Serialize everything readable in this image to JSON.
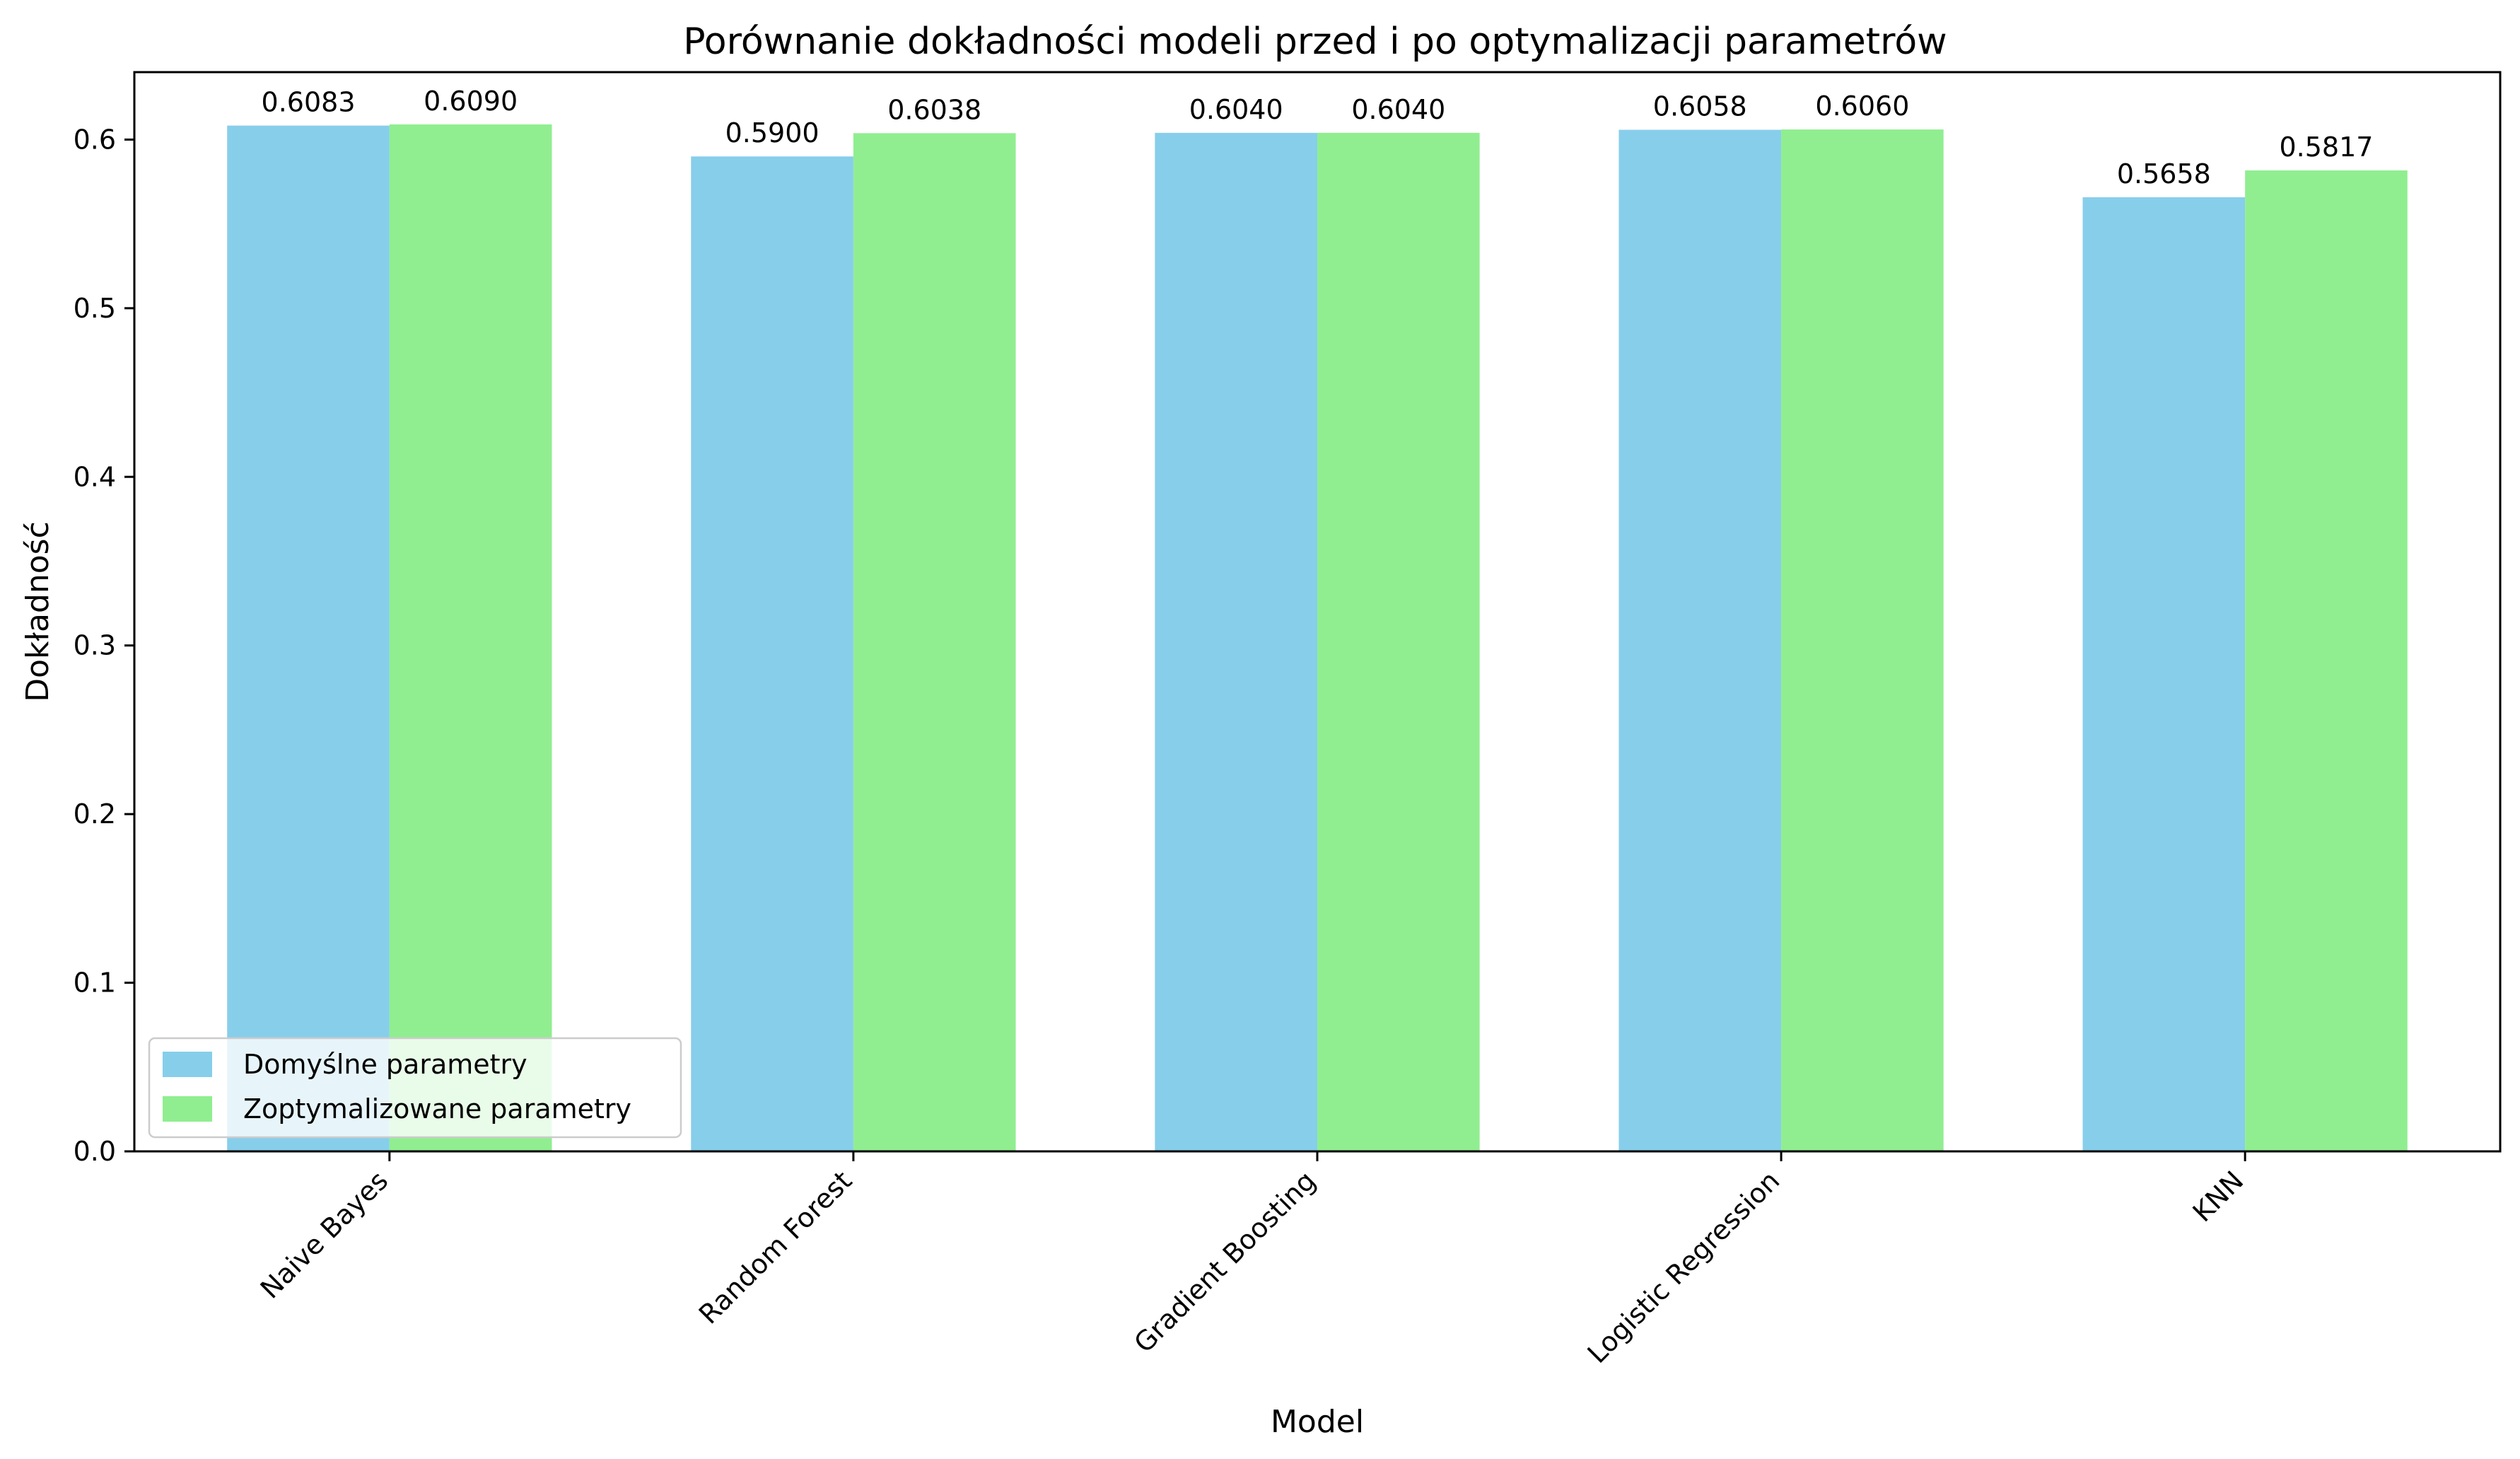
{
  "chart_data": {
    "type": "bar",
    "title": "Porównanie dokładności modeli przed i po optymalizacji parametrów",
    "xlabel": "Model",
    "ylabel": "Dokładność",
    "categories": [
      "Naive Bayes",
      "Random Forest",
      "Gradient Boosting",
      "Logistic Regression",
      "KNN"
    ],
    "series": [
      {
        "name": "Domyślne parametry",
        "color": "#87ceeb",
        "values": [
          0.6083,
          0.59,
          0.604,
          0.6058,
          0.5658
        ]
      },
      {
        "name": "Zoptymalizowane parametry",
        "color": "#90ee90",
        "values": [
          0.609,
          0.6038,
          0.604,
          0.606,
          0.5817
        ]
      }
    ],
    "ylim": [
      0,
      0.64
    ],
    "yticks": [
      0.0,
      0.1,
      0.2,
      0.3,
      0.4,
      0.5,
      0.6
    ],
    "value_label_format": "4 decimals",
    "xtick_rotation": 45,
    "legend_position": "lower-left",
    "grid": false
  }
}
